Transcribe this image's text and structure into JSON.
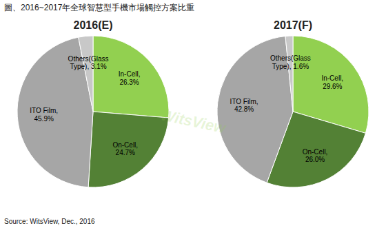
{
  "title": "圖、2016~2017年全球智慧型手機市場觸控方案比重",
  "annotations": [
    "Source: WitsView, Dec., 2016",
    "WitsView"
  ],
  "chart_data": [
    {
      "type": "pie",
      "title": "2016(E)",
      "values": [
        26.3,
        24.7,
        45.9,
        3.1
      ],
      "value_labels": [
        "In-Cell,\n26.3%",
        "On-Cell,\n24.7%",
        "ITO Film,\n45.9%",
        "Others(Glass\nType), 3.1%"
      ],
      "colors": [
        "#92D050",
        "#538135",
        "#A6A6A6",
        "#C8C8C8"
      ],
      "data_labels": true
    },
    {
      "type": "pie",
      "title": "2017(F)",
      "values": [
        29.6,
        26.0,
        42.8,
        1.6
      ],
      "value_labels": [
        "In-Cell,\n29.6%",
        "On-Cell,\n26.0%",
        "ITO Film,\n42.8%",
        "Others(Glass\nType), 1.6%"
      ],
      "colors": [
        "#92D050",
        "#538135",
        "#A6A6A6",
        "#C8C8C8"
      ],
      "data_labels": true
    }
  ]
}
